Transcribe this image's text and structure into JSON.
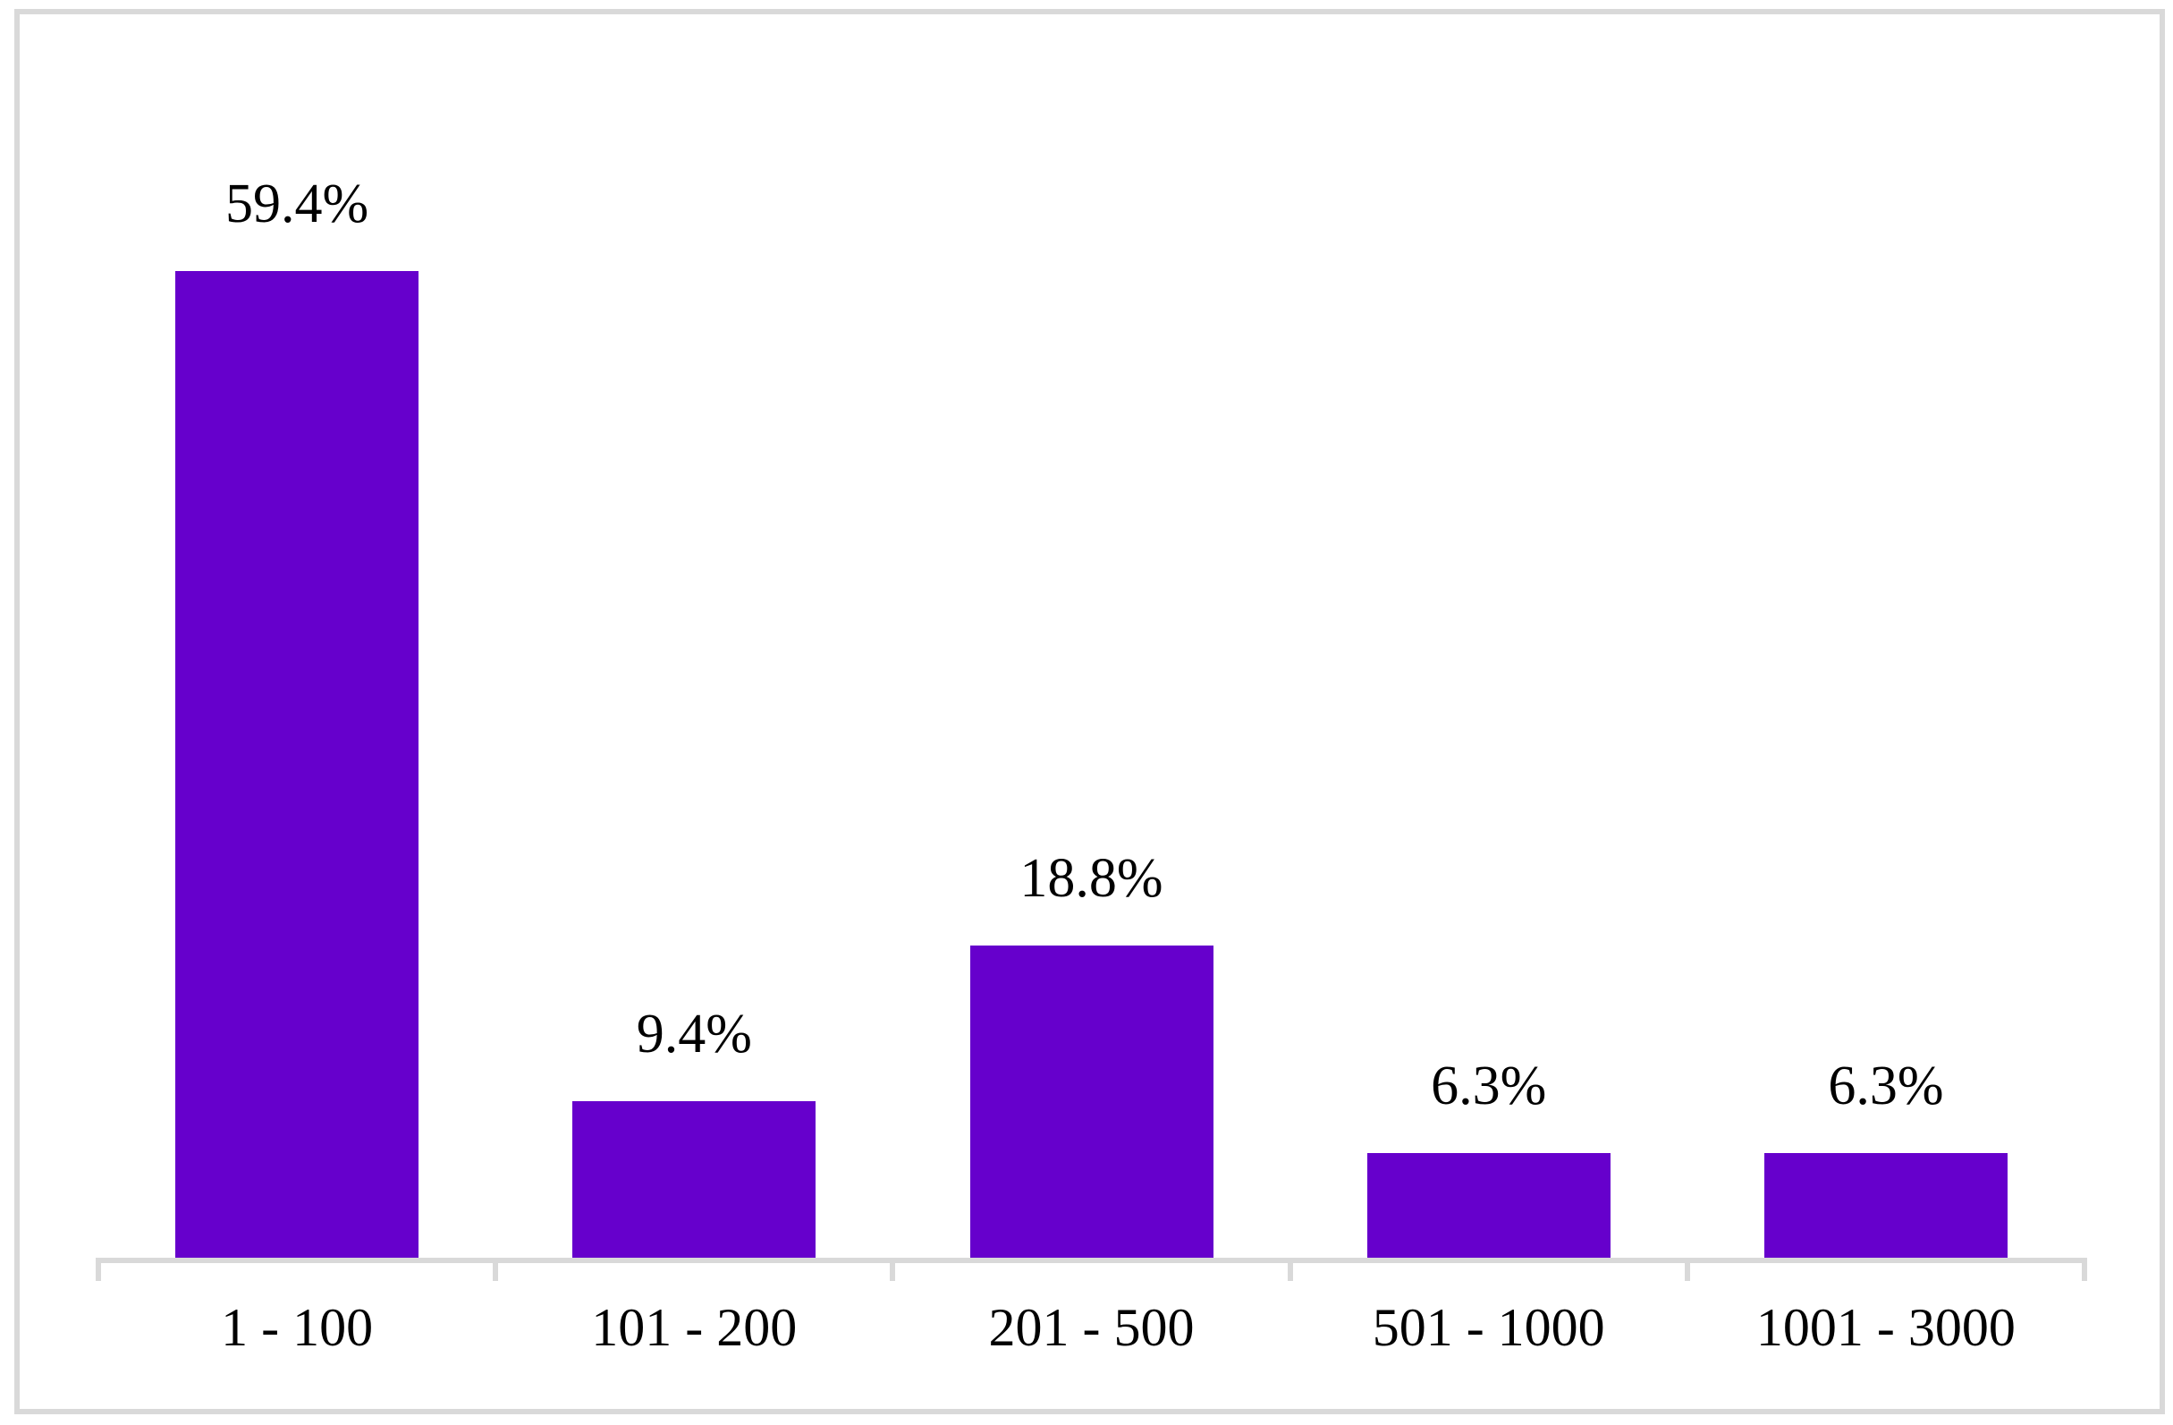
{
  "chart_data": {
    "type": "bar",
    "title": "",
    "xlabel": "",
    "ylabel": "",
    "categories": [
      "1 - 100",
      "101 - 200",
      "201 - 500",
      "501 - 1000",
      "1001 - 3000"
    ],
    "values": [
      59.4,
      9.4,
      18.8,
      6.3,
      6.3
    ],
    "data_labels": [
      "59.4%",
      "9.4%",
      "18.8%",
      "6.3%",
      "6.3%"
    ],
    "grid": false,
    "legend": false,
    "bar_color": "#6600CC",
    "axis_color": "#D9D9D9",
    "frame_color": "#D9D9D9",
    "text_color": "#000000",
    "background": "#FFFFFF"
  }
}
